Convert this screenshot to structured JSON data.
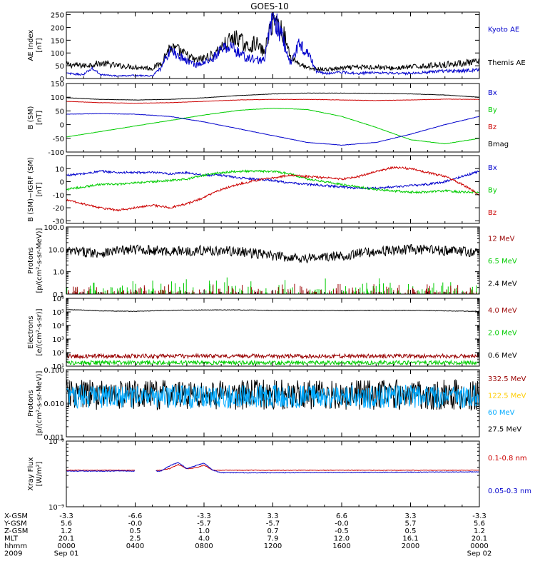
{
  "title": "GOES-10",
  "colors": {
    "black": "#000000",
    "blue": "#0000cc",
    "green": "#00cc00",
    "red": "#cc0000",
    "darkred": "#990000",
    "yellow": "#ffcc00",
    "cyan": "#00aaff"
  },
  "time_axis": {
    "start_hour": 0,
    "end_hour": 24,
    "ticks_hours": [
      0,
      4,
      8,
      12,
      16,
      20,
      24
    ],
    "minor_ticks_per_major": 4
  },
  "chart_data": [
    {
      "name": "ae-index",
      "type": "line",
      "ylabel": [
        "AE Index",
        "[nT]"
      ],
      "ylim": [
        0,
        260
      ],
      "yticks": [
        0,
        50,
        100,
        150,
        200,
        250
      ],
      "yticklabels": [
        "0",
        "50",
        "100",
        "150",
        "200",
        "250"
      ],
      "legend": [
        {
          "label": "Kyoto AE",
          "color": "blue"
        },
        {
          "label": "Themis AE",
          "color": "black"
        }
      ],
      "series": [
        {
          "name": "Themis AE",
          "color": "black",
          "x": [
            0,
            1,
            2,
            3,
            4,
            5,
            5.5,
            6,
            6.5,
            7,
            7.5,
            8,
            8.5,
            9,
            9.5,
            10,
            10.5,
            11,
            11.5,
            12,
            12.3,
            12.6,
            13,
            13.5,
            14,
            15,
            16,
            17,
            18,
            19,
            20,
            21,
            22,
            23,
            24
          ],
          "y": [
            55,
            50,
            60,
            50,
            45,
            40,
            60,
            120,
            110,
            90,
            70,
            80,
            90,
            120,
            150,
            160,
            120,
            140,
            100,
            230,
            210,
            180,
            90,
            60,
            40,
            35,
            40,
            45,
            45,
            40,
            45,
            50,
            55,
            60,
            65
          ]
        },
        {
          "name": "Kyoto AE",
          "color": "blue",
          "x": [
            0,
            1,
            1.5,
            2,
            3,
            4,
            5,
            5.5,
            6,
            6.5,
            7,
            7.5,
            8,
            8.5,
            9,
            9.5,
            10,
            10.5,
            11,
            11.5,
            12,
            12.3,
            12.6,
            13,
            13.5,
            14,
            14.5,
            15,
            16,
            17,
            18,
            19,
            20,
            21,
            22,
            23,
            24
          ],
          "y": [
            20,
            15,
            40,
            15,
            10,
            12,
            10,
            40,
            110,
            90,
            70,
            55,
            60,
            80,
            110,
            130,
            100,
            80,
            75,
            70,
            250,
            200,
            150,
            60,
            130,
            110,
            30,
            20,
            25,
            20,
            25,
            20,
            20,
            25,
            30,
            30,
            35
          ]
        }
      ]
    },
    {
      "name": "b-sm",
      "type": "line",
      "ylabel": [
        "B (SM)",
        "[nT]"
      ],
      "ylim": [
        -100,
        150
      ],
      "yticks": [
        -100,
        -50,
        0,
        50,
        100,
        150
      ],
      "yticklabels": [
        "-100",
        "-50",
        "0",
        "50",
        "100",
        "150"
      ],
      "legend": [
        {
          "label": "Bx",
          "color": "blue"
        },
        {
          "label": "By",
          "color": "green"
        },
        {
          "label": "Bz",
          "color": "red"
        },
        {
          "label": "Bmag",
          "color": "black"
        }
      ],
      "series": [
        {
          "name": "Bmag",
          "color": "black",
          "x": [
            0,
            2,
            4,
            6,
            8,
            10,
            12,
            14,
            16,
            18,
            20,
            22,
            24
          ],
          "y": [
            98,
            92,
            90,
            92,
            98,
            106,
            112,
            115,
            115,
            114,
            112,
            108,
            100
          ]
        },
        {
          "name": "Bz",
          "color": "red",
          "x": [
            0,
            2,
            4,
            6,
            8,
            10,
            12,
            14,
            16,
            18,
            20,
            22,
            24
          ],
          "y": [
            85,
            80,
            78,
            80,
            85,
            90,
            92,
            92,
            90,
            88,
            90,
            93,
            92
          ]
        },
        {
          "name": "By",
          "color": "green",
          "x": [
            0,
            2,
            4,
            6,
            8,
            10,
            12,
            14,
            16,
            18,
            20,
            22,
            24
          ],
          "y": [
            -45,
            -25,
            -5,
            15,
            35,
            52,
            60,
            55,
            30,
            -10,
            -55,
            -70,
            -50
          ]
        },
        {
          "name": "Bx",
          "color": "blue",
          "x": [
            0,
            2,
            4,
            6,
            8,
            10,
            12,
            14,
            16,
            18,
            20,
            22,
            24
          ],
          "y": [
            38,
            40,
            38,
            30,
            10,
            -15,
            -40,
            -65,
            -75,
            -65,
            -35,
            0,
            30
          ]
        }
      ]
    },
    {
      "name": "b-minus-igrf",
      "type": "line",
      "ylabel": [
        "B (SM)−IGRF (SM)",
        "[nT]"
      ],
      "ylim": [
        -32,
        20
      ],
      "yticks": [
        -30,
        -20,
        -10,
        0,
        10
      ],
      "yticklabels": [
        "-30",
        "-20",
        "-10",
        "0",
        "10"
      ],
      "legend": [
        {
          "label": "Bx",
          "color": "blue"
        },
        {
          "label": "By",
          "color": "green"
        },
        {
          "label": "Bz",
          "color": "red"
        }
      ],
      "series": [
        {
          "name": "Bx",
          "color": "blue",
          "x": [
            0,
            1,
            2,
            3,
            4,
            5,
            6,
            7,
            8,
            9,
            10,
            11,
            12,
            13,
            14,
            15,
            16,
            17,
            18,
            19,
            20,
            21,
            22,
            23,
            24
          ],
          "y": [
            5,
            6,
            8,
            7,
            7,
            7,
            6,
            7,
            5,
            5,
            3,
            2,
            1,
            -1,
            -2,
            -3,
            -4,
            -5,
            -5,
            -4,
            -3,
            -2,
            0,
            4,
            8
          ]
        },
        {
          "name": "By",
          "color": "green",
          "x": [
            0,
            1,
            2,
            3,
            4,
            5,
            6,
            7,
            8,
            9,
            10,
            11,
            12,
            13,
            14,
            15,
            16,
            17,
            18,
            19,
            20,
            21,
            22,
            23,
            24
          ],
          "y": [
            -6,
            -4,
            -2,
            -2,
            -1,
            0,
            1,
            2,
            5,
            7,
            8,
            8,
            8,
            6,
            2,
            0,
            -2,
            -4,
            -6,
            -7,
            -8,
            -8,
            -7,
            -8,
            -8
          ]
        },
        {
          "name": "Bz",
          "color": "red",
          "x": [
            0,
            1,
            2,
            3,
            4,
            5,
            6,
            7,
            8,
            9,
            10,
            11,
            12,
            13,
            14,
            15,
            16,
            17,
            18,
            19,
            20,
            21,
            22,
            23,
            24
          ],
          "y": [
            -14,
            -17,
            -20,
            -22,
            -20,
            -18,
            -20,
            -17,
            -12,
            -6,
            -2,
            1,
            3,
            5,
            4,
            3,
            2,
            4,
            8,
            11,
            10,
            7,
            4,
            -2,
            -10
          ]
        }
      ]
    },
    {
      "name": "protons-low",
      "type": "line",
      "yscale": "log",
      "ylabel": [
        "Protons",
        "[p/(cm²-s-sr-MeV)]"
      ],
      "ylim": [
        0.1,
        100
      ],
      "yticks": [
        0.1,
        1,
        10,
        100
      ],
      "yticklabels": [
        "0.1",
        "1.0",
        "10.0",
        "100.0"
      ],
      "legend": [
        {
          "label": "12 MeV",
          "color": "darkred"
        },
        {
          "label": "6.5 MeV",
          "color": "green"
        },
        {
          "label": "2.4 MeV",
          "color": "black"
        }
      ],
      "series": [
        {
          "name": "2.4 MeV",
          "color": "black",
          "x": [
            0,
            2,
            4,
            6,
            8,
            10,
            12,
            14,
            16,
            18,
            20,
            22,
            24
          ],
          "y": [
            8,
            7,
            10,
            8,
            9,
            8,
            5,
            4,
            5,
            8,
            10,
            9,
            7
          ]
        },
        {
          "name": "6.5 MeV",
          "color": "green",
          "x": [
            0,
            24
          ],
          "y": [
            0.15,
            0.15
          ]
        },
        {
          "name": "12 MeV",
          "color": "darkred",
          "x": [
            0,
            24
          ],
          "y": [
            0.11,
            0.11
          ]
        }
      ]
    },
    {
      "name": "electrons",
      "type": "line",
      "yscale": "log",
      "ylabel": [
        "Electrons",
        "[e/(cm²-s-sr)]"
      ],
      "ylim": [
        10,
        1000000
      ],
      "yticks": [
        10,
        100,
        1000,
        10000,
        100000,
        1000000
      ],
      "yticklabels": [
        "10¹",
        "10²",
        "10³",
        "10⁴",
        "10⁵",
        "10⁶"
      ],
      "legend": [
        {
          "label": "4.0 MeV",
          "color": "darkred"
        },
        {
          "label": "2.0 MeV",
          "color": "green"
        },
        {
          "label": "0.6 MeV",
          "color": "black"
        }
      ],
      "series": [
        {
          "name": "0.6 MeV",
          "color": "black",
          "x": [
            0,
            2,
            4,
            6,
            8,
            10,
            12,
            14,
            16,
            18,
            20,
            22,
            24
          ],
          "y": [
            150000,
            120000,
            110000,
            130000,
            140000,
            140000,
            130000,
            130000,
            125000,
            130000,
            130000,
            120000,
            110000
          ]
        },
        {
          "name": "4.0 MeV",
          "color": "darkred",
          "x": [
            0,
            24
          ],
          "y": [
            55,
            55
          ]
        },
        {
          "name": "2.0 MeV",
          "color": "green",
          "x": [
            0,
            24
          ],
          "y": [
            18,
            18
          ]
        }
      ]
    },
    {
      "name": "protons-high",
      "type": "line",
      "yscale": "log",
      "ylabel": [
        "Protons",
        "[p/(cm²-s-sr-MeV)]"
      ],
      "ylim": [
        0.001,
        0.1
      ],
      "yticks": [
        0.001,
        0.01,
        0.1
      ],
      "yticklabels": [
        "0.001",
        "0.010",
        "0.100"
      ],
      "legend": [
        {
          "label": "332.5 MeV",
          "color": "darkred"
        },
        {
          "label": "122.5 MeV",
          "color": "yellow"
        },
        {
          "label": "60 MeV",
          "color": "cyan"
        },
        {
          "label": "27.5 MeV",
          "color": "black"
        }
      ],
      "series": [
        {
          "name": "27.5 MeV",
          "color": "black",
          "x": [
            0,
            24
          ],
          "y": [
            0.018,
            0.018
          ]
        },
        {
          "name": "60 MeV",
          "color": "cyan",
          "x": [
            0,
            24
          ],
          "y": [
            0.016,
            0.016
          ]
        }
      ]
    },
    {
      "name": "xray-flux",
      "type": "line",
      "yscale": "log",
      "ylabel": [
        "Xray Flux",
        "[W/m²]"
      ],
      "ylim": [
        1e-09,
        1e-08
      ],
      "yticks": [
        1e-09,
        1e-08
      ],
      "yticklabels": [
        "10⁻⁹",
        "10⁻⁸"
      ],
      "legend": [
        {
          "label": "0.1-0.8 nm",
          "color": "red"
        },
        {
          "label": "0.05-0.3 nm",
          "color": "blue"
        }
      ],
      "series": [
        {
          "name": "0.1-0.8 nm",
          "color": "red",
          "x": [
            0,
            4,
            5.5,
            6,
            6.5,
            7,
            7.5,
            8,
            8.5,
            9,
            10,
            12,
            24
          ],
          "y": [
            3.6e-09,
            3.6e-09,
            3.6e-09,
            3.8e-09,
            4.4e-09,
            3.8e-09,
            3.9e-09,
            4.3e-09,
            3.6e-09,
            3.6e-09,
            3.6e-09,
            3.6e-09,
            3.6e-09
          ]
        },
        {
          "name": "0.05-0.3 nm",
          "color": "blue",
          "x": [
            0,
            4,
            5.5,
            6,
            6.5,
            7,
            7.5,
            8,
            8.5,
            9,
            10,
            12,
            24
          ],
          "y": [
            3.5e-09,
            3.5e-09,
            3.5e-09,
            4.2e-09,
            4.7e-09,
            3.8e-09,
            4.2e-09,
            4.6e-09,
            3.6e-09,
            3.3e-09,
            3.3e-09,
            3.3e-09,
            3.4e-09
          ]
        }
      ]
    }
  ],
  "ephemeris": {
    "row_labels": [
      "X-GSM",
      "Y-GSM",
      "Z-GSM",
      "MLT",
      "hhmm",
      "2009"
    ],
    "columns": [
      [
        "-3.3",
        "5.6",
        "1.2",
        "20.1",
        "0000",
        "Sep 01"
      ],
      [
        "-6.6",
        "-0.0",
        "0.5",
        "2.5",
        "0400",
        ""
      ],
      [
        "-3.3",
        "-5.7",
        "1.0",
        "4.0",
        "0800",
        ""
      ],
      [
        "3.3",
        "-5.7",
        "0.7",
        "7.9",
        "1200",
        ""
      ],
      [
        "6.6",
        "-0.0",
        "-0.5",
        "12.0",
        "1600",
        ""
      ],
      [
        "3.3",
        "5.7",
        "0.5",
        "16.1",
        "2000",
        ""
      ],
      [
        "-3.3",
        "5.6",
        "1.2",
        "20.1",
        "0000",
        "Sep 02"
      ]
    ]
  }
}
